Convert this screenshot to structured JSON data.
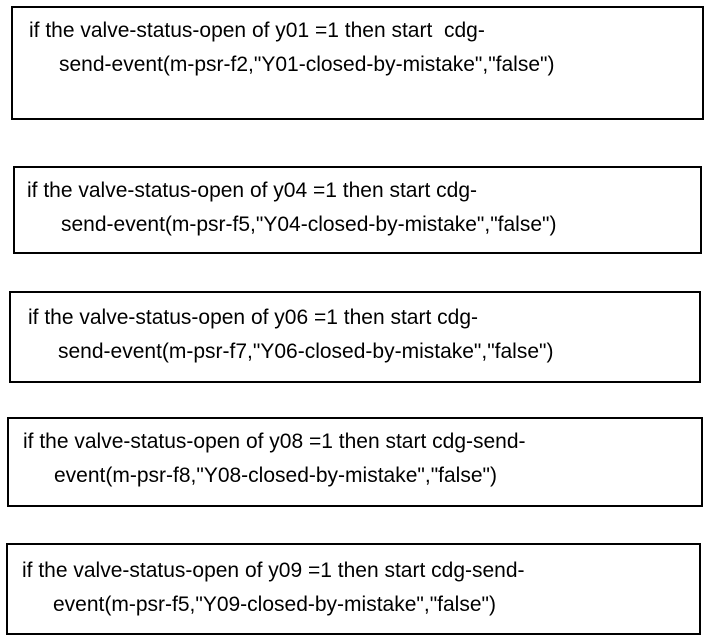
{
  "rules": [
    {
      "line1": "if the valve-status-open of y01 =1 then start  cdg-",
      "line2": "send-event(m-psr-f2,\"Y01-closed-by-mistake\",\"false\")"
    },
    {
      "line1": "if the valve-status-open of y04 =1 then start cdg-",
      "line2": "send-event(m-psr-f5,\"Y04-closed-by-mistake\",\"false\")"
    },
    {
      "line1": "if the valve-status-open of y06 =1 then start cdg-",
      "line2": "send-event(m-psr-f7,\"Y06-closed-by-mistake\",\"false\")"
    },
    {
      "line1": "if the valve-status-open of y08 =1 then start cdg-send-",
      "line2": "event(m-psr-f8,\"Y08-closed-by-mistake\",\"false\")"
    },
    {
      "line1": "if the valve-status-open of y09 =1 then start cdg-send-",
      "line2": "event(m-psr-f5,\"Y09-closed-by-mistake\",\"false\")"
    }
  ]
}
